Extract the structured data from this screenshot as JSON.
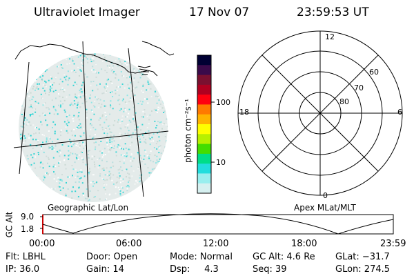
{
  "header": {
    "instrument": "Ultraviolet Imager",
    "date": "17 Nov 07",
    "time": "23:59:53 UT"
  },
  "geo_panel": {
    "label": "Geographic Lat/Lon"
  },
  "colorbar": {
    "unit_label": "photon cm⁻²s⁻¹",
    "ticks": [
      "100",
      "10"
    ],
    "colors": [
      "#000033",
      "#3a0a4a",
      "#7a1030",
      "#b00020",
      "#ff0010",
      "#ff7a00",
      "#ffb400",
      "#ffff00",
      "#b8f000",
      "#44dd00",
      "#00dd88",
      "#22dddd",
      "#99eeee",
      "#d6f0f0"
    ]
  },
  "polar_panel": {
    "label": "Apex MLat/MLT",
    "mlt_labels": [
      "12",
      "18",
      "6",
      "0"
    ],
    "lat_labels": [
      "60",
      "70",
      "80"
    ]
  },
  "altitude_plot": {
    "ylabel": "GC Alt",
    "yticks": [
      "9.0",
      "1.8"
    ],
    "xticks": [
      "00:00",
      "06:00",
      "12:00",
      "18:00",
      "23:59"
    ]
  },
  "footer": {
    "row1": [
      "Flt: LBHL",
      "Door: Open",
      "Mode: Normal",
      "GC Alt: 4.6 Re",
      "GLat: −31.7"
    ],
    "row2": [
      "IP: 36.0",
      "Gain: 14",
      "Dsp:     4.3",
      "Seq: 39",
      "GLon: 274.5"
    ]
  }
}
